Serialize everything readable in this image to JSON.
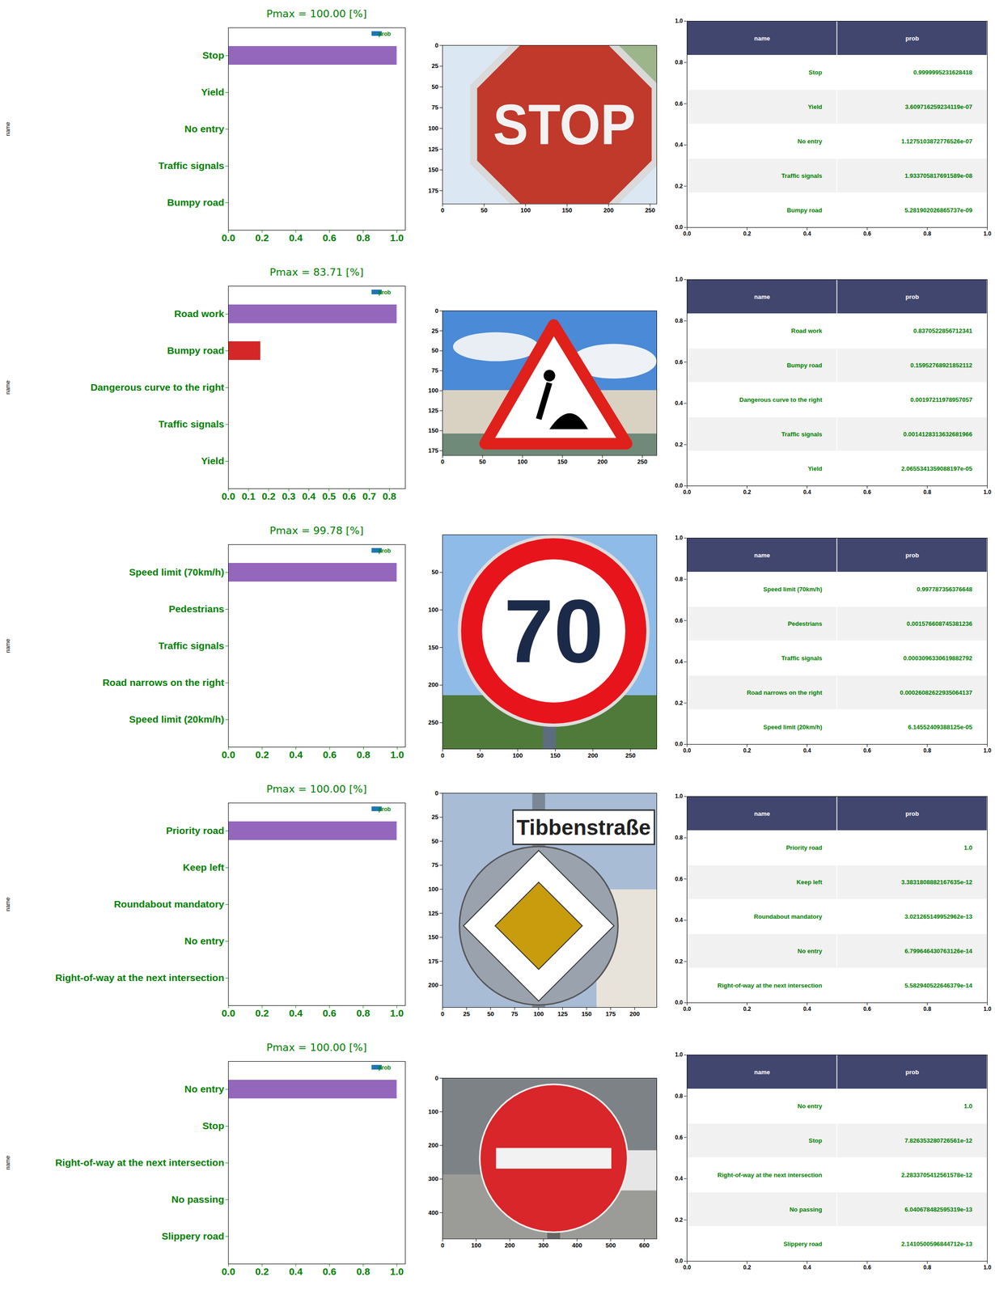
{
  "chart_data": [
    {
      "type": "bar",
      "orientation": "horizontal",
      "title": "Pmax = 100.00 [%]",
      "y_label": "name",
      "legend": "upper right",
      "categories": [
        "Stop",
        "Yield",
        "No entry",
        "Traffic signals",
        "Bumpy road"
      ],
      "series": [
        {
          "name": "prob",
          "color": "#1f77b4",
          "values": [
            0.9999995231628418,
            3.609716259234119e-07,
            1.1275103872776526e-07,
            1.933705817691589e-08,
            5.281902026865737e-09
          ]
        }
      ],
      "colors": [
        "#9467bd",
        "#d62728",
        "#2ca02c",
        "#ff7f0e",
        "#1f77b4"
      ],
      "xlim": [
        0,
        1.05
      ],
      "xticks": [
        {
          "value": 0,
          "label": "0.0"
        },
        {
          "value": 0.2,
          "label": "0.2"
        },
        {
          "value": 0.4,
          "label": "0.4"
        },
        {
          "value": 0.6,
          "label": "0.6"
        },
        {
          "value": 0.8,
          "label": "0.8"
        },
        {
          "value": 1,
          "label": "1.0"
        }
      ]
    },
    {
      "type": "image",
      "image_text": "STOP",
      "xlim": [
        0,
        258
      ],
      "ylim": [
        191,
        0
      ],
      "xticks": [
        0,
        50,
        100,
        150,
        200,
        250
      ],
      "yticks": [
        0,
        25,
        50,
        75,
        100,
        125,
        150,
        175
      ]
    },
    {
      "type": "table",
      "columns": [
        "name",
        "prob"
      ],
      "rows": [
        [
          "Stop",
          "0.9999995231628418"
        ],
        [
          "Yield",
          "3.609716259234119e-07"
        ],
        [
          "No entry",
          "1.1275103872776526e-07"
        ],
        [
          "Traffic signals",
          "1.933705817691589e-08"
        ],
        [
          "Bumpy road",
          "5.281902026865737e-09"
        ]
      ],
      "xlim": [
        0,
        1
      ],
      "ylim": [
        0,
        1
      ],
      "xticks": [
        {
          "value": 0,
          "label": "0.0"
        },
        {
          "value": 0.2,
          "label": "0.2"
        },
        {
          "value": 0.4,
          "label": "0.4"
        },
        {
          "value": 0.6,
          "label": "0.6"
        },
        {
          "value": 0.8,
          "label": "0.8"
        },
        {
          "value": 1,
          "label": "1.0"
        }
      ],
      "yticks": [
        {
          "value": 0,
          "label": "0.0"
        },
        {
          "value": 0.2,
          "label": "0.2"
        },
        {
          "value": 0.4,
          "label": "0.4"
        },
        {
          "value": 0.6,
          "label": "0.6"
        },
        {
          "value": 0.8,
          "label": "0.8"
        },
        {
          "value": 1,
          "label": "1.0"
        }
      ]
    },
    {
      "type": "bar",
      "orientation": "horizontal",
      "title": "Pmax = 83.71 [%]",
      "y_label": "name",
      "legend": "upper right",
      "categories": [
        "Road work",
        "Bumpy road",
        "Dangerous curve to the right",
        "Traffic signals",
        "Yield"
      ],
      "series": [
        {
          "name": "prob",
          "color": "#1f77b4",
          "values": [
            0.8370522856712341,
            0.15952768921852112,
            0.00197211978957057,
            0.0014128313632681966,
            2.0655341359088197e-05
          ]
        }
      ],
      "colors": [
        "#9467bd",
        "#d62728",
        "#2ca02c",
        "#ff7f0e",
        "#1f77b4"
      ],
      "xlim": [
        0,
        0.879
      ],
      "xticks": [
        {
          "value": 0,
          "label": "0.0"
        },
        {
          "value": 0.1,
          "label": "0.1"
        },
        {
          "value": 0.2,
          "label": "0.2"
        },
        {
          "value": 0.3,
          "label": "0.3"
        },
        {
          "value": 0.4,
          "label": "0.4"
        },
        {
          "value": 0.5,
          "label": "0.5"
        },
        {
          "value": 0.6,
          "label": "0.6"
        },
        {
          "value": 0.7,
          "label": "0.7"
        },
        {
          "value": 0.8,
          "label": "0.8"
        }
      ]
    },
    {
      "type": "image",
      "xlim": [
        0,
        268
      ],
      "ylim": [
        181,
        0
      ],
      "xticks": [
        0,
        50,
        100,
        150,
        200,
        250
      ],
      "yticks": [
        0,
        25,
        50,
        75,
        100,
        125,
        150,
        175
      ]
    },
    {
      "type": "table",
      "columns": [
        "name",
        "prob"
      ],
      "rows": [
        [
          "Road work",
          "0.8370522856712341"
        ],
        [
          "Bumpy road",
          "0.15952768921852112"
        ],
        [
          "Dangerous curve to the right",
          "0.00197211978957057"
        ],
        [
          "Traffic signals",
          "0.0014128313632681966"
        ],
        [
          "Yield",
          "2.0655341359088197e-05"
        ]
      ],
      "xlim": [
        0,
        1
      ],
      "ylim": [
        0,
        1
      ],
      "xticks": [
        {
          "value": 0,
          "label": "0.0"
        },
        {
          "value": 0.2,
          "label": "0.2"
        },
        {
          "value": 0.4,
          "label": "0.4"
        },
        {
          "value": 0.6,
          "label": "0.6"
        },
        {
          "value": 0.8,
          "label": "0.8"
        },
        {
          "value": 1,
          "label": "1.0"
        }
      ],
      "yticks": [
        {
          "value": 0,
          "label": "0.0"
        },
        {
          "value": 0.2,
          "label": "0.2"
        },
        {
          "value": 0.4,
          "label": "0.4"
        },
        {
          "value": 0.6,
          "label": "0.6"
        },
        {
          "value": 0.8,
          "label": "0.8"
        },
        {
          "value": 1,
          "label": "1.0"
        }
      ]
    },
    {
      "type": "bar",
      "orientation": "horizontal",
      "title": "Pmax = 99.78 [%]",
      "y_label": "name",
      "legend": "upper right",
      "categories": [
        "Speed limit (70km/h)",
        "Pedestrians",
        "Traffic signals",
        "Road narrows on the right",
        "Speed limit (20km/h)"
      ],
      "series": [
        {
          "name": "prob",
          "color": "#1f77b4",
          "values": [
            0.997787356376648,
            0.001576608745381236,
            0.0003096330619882792,
            0.00026082622935064137,
            6.14552409388125e-05
          ]
        }
      ],
      "colors": [
        "#9467bd",
        "#d62728",
        "#2ca02c",
        "#ff7f0e",
        "#1f77b4"
      ],
      "xlim": [
        0,
        1.0477
      ],
      "xticks": [
        {
          "value": 0,
          "label": "0.0"
        },
        {
          "value": 0.2,
          "label": "0.2"
        },
        {
          "value": 0.4,
          "label": "0.4"
        },
        {
          "value": 0.6,
          "label": "0.6"
        },
        {
          "value": 0.8,
          "label": "0.8"
        },
        {
          "value": 1,
          "label": "1.0"
        }
      ]
    },
    {
      "type": "image",
      "image_text": "70",
      "xlim": [
        0,
        285
      ],
      "ylim": [
        285,
        0
      ],
      "xticks": [
        0,
        50,
        100,
        150,
        200,
        250
      ],
      "yticks": [
        50,
        100,
        150,
        200,
        250
      ]
    },
    {
      "type": "table",
      "columns": [
        "name",
        "prob"
      ],
      "rows": [
        [
          "Speed limit (70km/h)",
          "0.997787356376648"
        ],
        [
          "Pedestrians",
          "0.001576608745381236"
        ],
        [
          "Traffic signals",
          "0.0003096330619882792"
        ],
        [
          "Road narrows on the right",
          "0.00026082622935064137"
        ],
        [
          "Speed limit (20km/h)",
          "6.14552409388125e-05"
        ]
      ],
      "xlim": [
        0,
        1
      ],
      "ylim": [
        0,
        1
      ],
      "xticks": [
        {
          "value": 0,
          "label": "0.0"
        },
        {
          "value": 0.2,
          "label": "0.2"
        },
        {
          "value": 0.4,
          "label": "0.4"
        },
        {
          "value": 0.6,
          "label": "0.6"
        },
        {
          "value": 0.8,
          "label": "0.8"
        },
        {
          "value": 1,
          "label": "1.0"
        }
      ],
      "yticks": [
        {
          "value": 0,
          "label": "0.0"
        },
        {
          "value": 0.2,
          "label": "0.2"
        },
        {
          "value": 0.4,
          "label": "0.4"
        },
        {
          "value": 0.6,
          "label": "0.6"
        },
        {
          "value": 0.8,
          "label": "0.8"
        },
        {
          "value": 1,
          "label": "1.0"
        }
      ]
    },
    {
      "type": "bar",
      "orientation": "horizontal",
      "title": "Pmax = 100.00 [%]",
      "y_label": "name",
      "legend": "upper right",
      "categories": [
        "Priority road",
        "Keep left",
        "Roundabout mandatory",
        "No entry",
        "Right-of-way at the next intersection"
      ],
      "series": [
        {
          "name": "prob",
          "color": "#1f77b4",
          "values": [
            1.0,
            3.3831808882167635e-12,
            3.021265149952962e-13,
            6.799646430763126e-14,
            5.582940522646379e-14
          ]
        }
      ],
      "colors": [
        "#9467bd",
        "#d62728",
        "#2ca02c",
        "#ff7f0e",
        "#1f77b4"
      ],
      "xlim": [
        0,
        1.05
      ],
      "xticks": [
        {
          "value": 0,
          "label": "0.0"
        },
        {
          "value": 0.2,
          "label": "0.2"
        },
        {
          "value": 0.4,
          "label": "0.4"
        },
        {
          "value": 0.6,
          "label": "0.6"
        },
        {
          "value": 0.8,
          "label": "0.8"
        },
        {
          "value": 1,
          "label": "1.0"
        }
      ]
    },
    {
      "type": "image",
      "image_text": "Tibbenstraße",
      "xlim": [
        0,
        223
      ],
      "ylim": [
        223,
        0
      ],
      "xticks": [
        0,
        25,
        50,
        75,
        100,
        125,
        150,
        175,
        200
      ],
      "yticks": [
        0,
        25,
        50,
        75,
        100,
        125,
        150,
        175,
        200
      ]
    },
    {
      "type": "table",
      "columns": [
        "name",
        "prob"
      ],
      "rows": [
        [
          "Priority road",
          "1.0"
        ],
        [
          "Keep left",
          "3.3831808882167635e-12"
        ],
        [
          "Roundabout mandatory",
          "3.021265149952962e-13"
        ],
        [
          "No entry",
          "6.799646430763126e-14"
        ],
        [
          "Right-of-way at the next intersection",
          "5.582940522646379e-14"
        ]
      ],
      "xlim": [
        0,
        1
      ],
      "ylim": [
        0,
        1
      ],
      "xticks": [
        {
          "value": 0,
          "label": "0.0"
        },
        {
          "value": 0.2,
          "label": "0.2"
        },
        {
          "value": 0.4,
          "label": "0.4"
        },
        {
          "value": 0.6,
          "label": "0.6"
        },
        {
          "value": 0.8,
          "label": "0.8"
        },
        {
          "value": 1,
          "label": "1.0"
        }
      ],
      "yticks": [
        {
          "value": 0,
          "label": "0.0"
        },
        {
          "value": 0.2,
          "label": "0.2"
        },
        {
          "value": 0.4,
          "label": "0.4"
        },
        {
          "value": 0.6,
          "label": "0.6"
        },
        {
          "value": 0.8,
          "label": "0.8"
        },
        {
          "value": 1,
          "label": "1.0"
        }
      ]
    },
    {
      "type": "bar",
      "orientation": "horizontal",
      "title": "Pmax = 100.00 [%]",
      "y_label": "name",
      "legend": "upper right",
      "categories": [
        "No entry",
        "Stop",
        "Right-of-way at the next intersection",
        "No passing",
        "Slippery road"
      ],
      "series": [
        {
          "name": "prob",
          "color": "#1f77b4",
          "values": [
            1.0,
            7.826353280726561e-12,
            2.2833705412561578e-12,
            6.040678482595319e-13,
            2.1410500596844712e-13
          ]
        }
      ],
      "colors": [
        "#9467bd",
        "#d62728",
        "#2ca02c",
        "#ff7f0e",
        "#1f77b4"
      ],
      "xlim": [
        0,
        1.05
      ],
      "xticks": [
        {
          "value": 0,
          "label": "0.0"
        },
        {
          "value": 0.2,
          "label": "0.2"
        },
        {
          "value": 0.4,
          "label": "0.4"
        },
        {
          "value": 0.6,
          "label": "0.6"
        },
        {
          "value": 0.8,
          "label": "0.8"
        },
        {
          "value": 1,
          "label": "1.0"
        }
      ]
    },
    {
      "type": "image",
      "xlim": [
        0,
        637
      ],
      "ylim": [
        478,
        0
      ],
      "xticks": [
        0,
        100,
        200,
        300,
        400,
        500,
        600
      ],
      "yticks": [
        0,
        100,
        200,
        300,
        400
      ]
    },
    {
      "type": "table",
      "columns": [
        "name",
        "prob"
      ],
      "rows": [
        [
          "No entry",
          "1.0"
        ],
        [
          "Stop",
          "7.826353280726561e-12"
        ],
        [
          "Right-of-way at the next intersection",
          "2.2833705412561578e-12"
        ],
        [
          "No passing",
          "6.040678482595319e-13"
        ],
        [
          "Slippery road",
          "2.1410500596844712e-13"
        ]
      ],
      "xlim": [
        0,
        1
      ],
      "ylim": [
        0,
        1
      ],
      "xticks": [
        {
          "value": 0,
          "label": "0.0"
        },
        {
          "value": 0.2,
          "label": "0.2"
        },
        {
          "value": 0.4,
          "label": "0.4"
        },
        {
          "value": 0.6,
          "label": "0.6"
        },
        {
          "value": 0.8,
          "label": "0.8"
        },
        {
          "value": 1,
          "label": "1.0"
        }
      ],
      "yticks": [
        {
          "value": 0,
          "label": "0.0"
        },
        {
          "value": 0.2,
          "label": "0.2"
        },
        {
          "value": 0.4,
          "label": "0.4"
        },
        {
          "value": 0.6,
          "label": "0.6"
        },
        {
          "value": 0.8,
          "label": "0.8"
        },
        {
          "value": 1,
          "label": "1.0"
        }
      ]
    }
  ]
}
